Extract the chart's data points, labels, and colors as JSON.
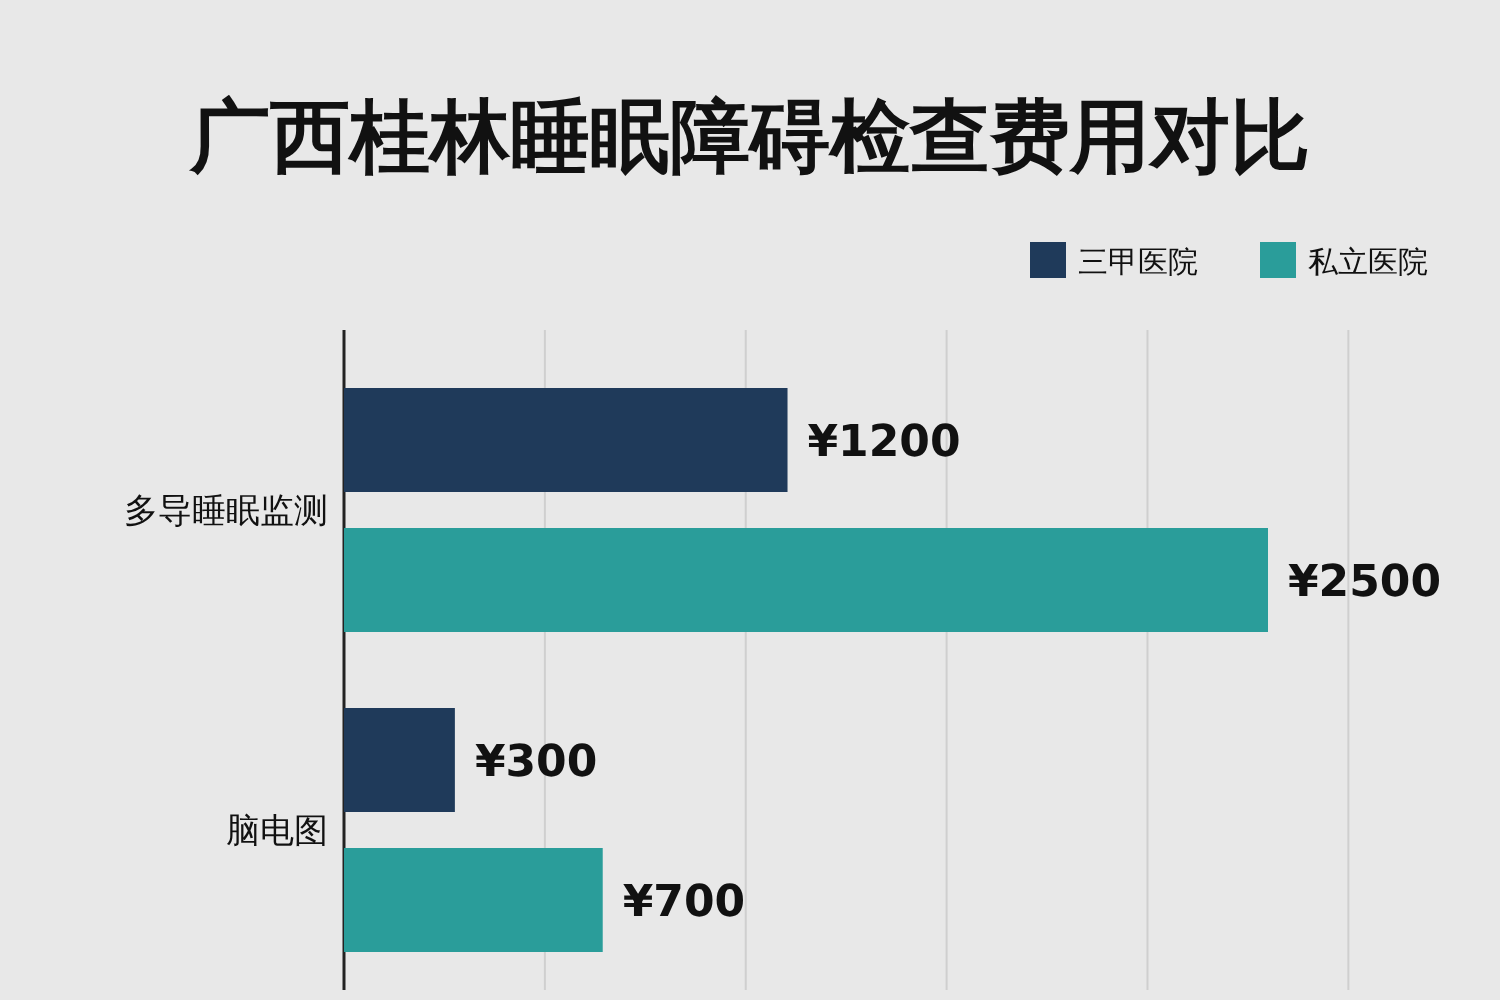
{
  "chart_data": {
    "type": "bar",
    "orientation": "horizontal",
    "title": "广西桂林睡眠障碍检查费用对比",
    "categories": [
      "多导睡眠监测",
      "脑电图"
    ],
    "series": [
      {
        "name": "三甲医院",
        "color": "#1f3a5a",
        "values": [
          1200,
          300
        ],
        "value_labels": [
          "¥1200",
          "¥300"
        ]
      },
      {
        "name": "私立医院",
        "color": "#2a9d9a",
        "values": [
          2500,
          700
        ],
        "value_labels": [
          "¥2500",
          "¥700"
        ]
      }
    ],
    "grid": "x",
    "legend": "top right"
  }
}
